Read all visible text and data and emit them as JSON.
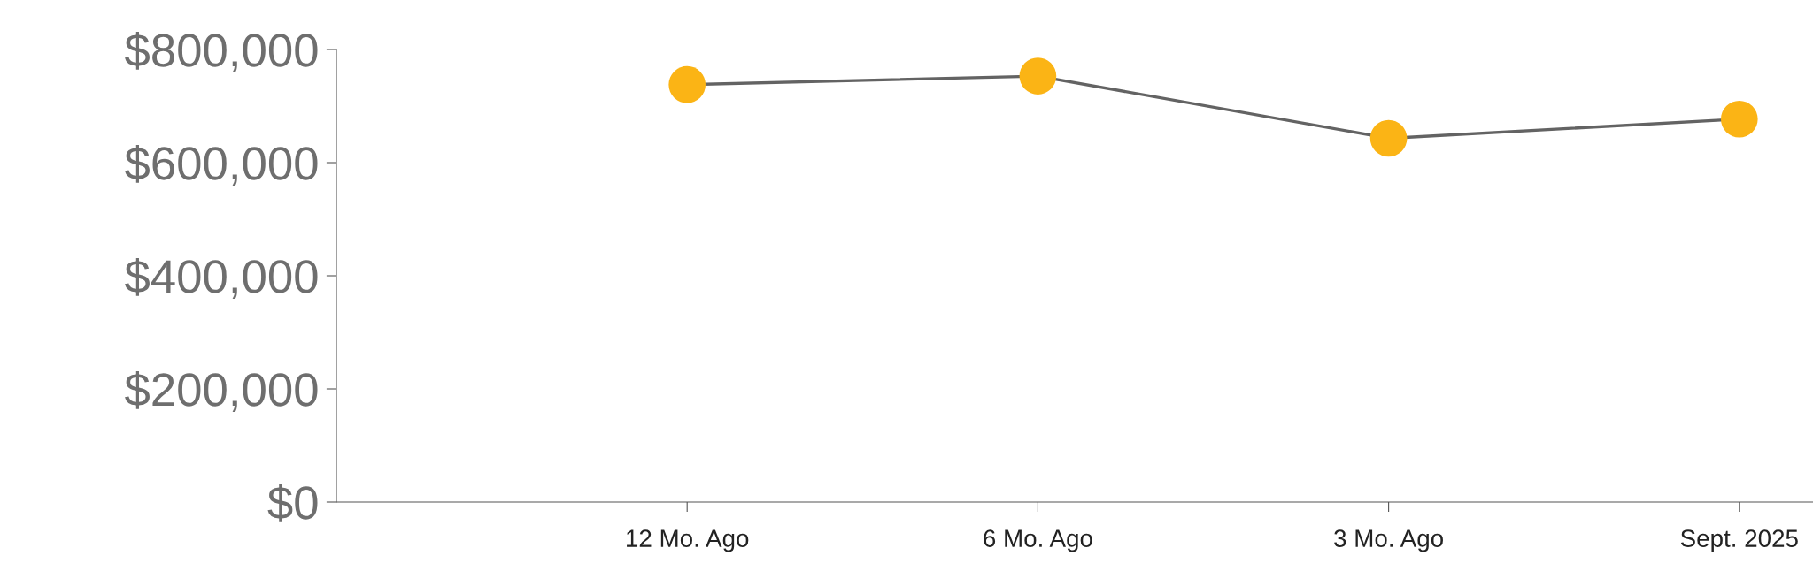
{
  "chart_data": {
    "type": "line",
    "categories": [
      "12 Mo. Ago",
      "6 Mo. Ago",
      "3 Mo. Ago",
      "Sept. 2025"
    ],
    "series": [
      {
        "color": "#636363",
        "colors": [
          "#fbb415",
          "#fbb415",
          "#fbb415",
          "#fbb415"
        ],
        "values": [
          738000,
          753000,
          643000,
          677000
        ]
      }
    ],
    "ylim": [
      0,
      800000
    ],
    "yticks": [
      {
        "value": 0,
        "label": "$0"
      },
      {
        "value": 200000,
        "label": "$200,000"
      },
      {
        "value": 400000,
        "label": "$400,000"
      },
      {
        "value": 600000,
        "label": "$600,000"
      },
      {
        "value": 800000,
        "label": "$800,000"
      }
    ],
    "marker": "circle",
    "line_style": "solid",
    "grid": false,
    "legend": false
  }
}
